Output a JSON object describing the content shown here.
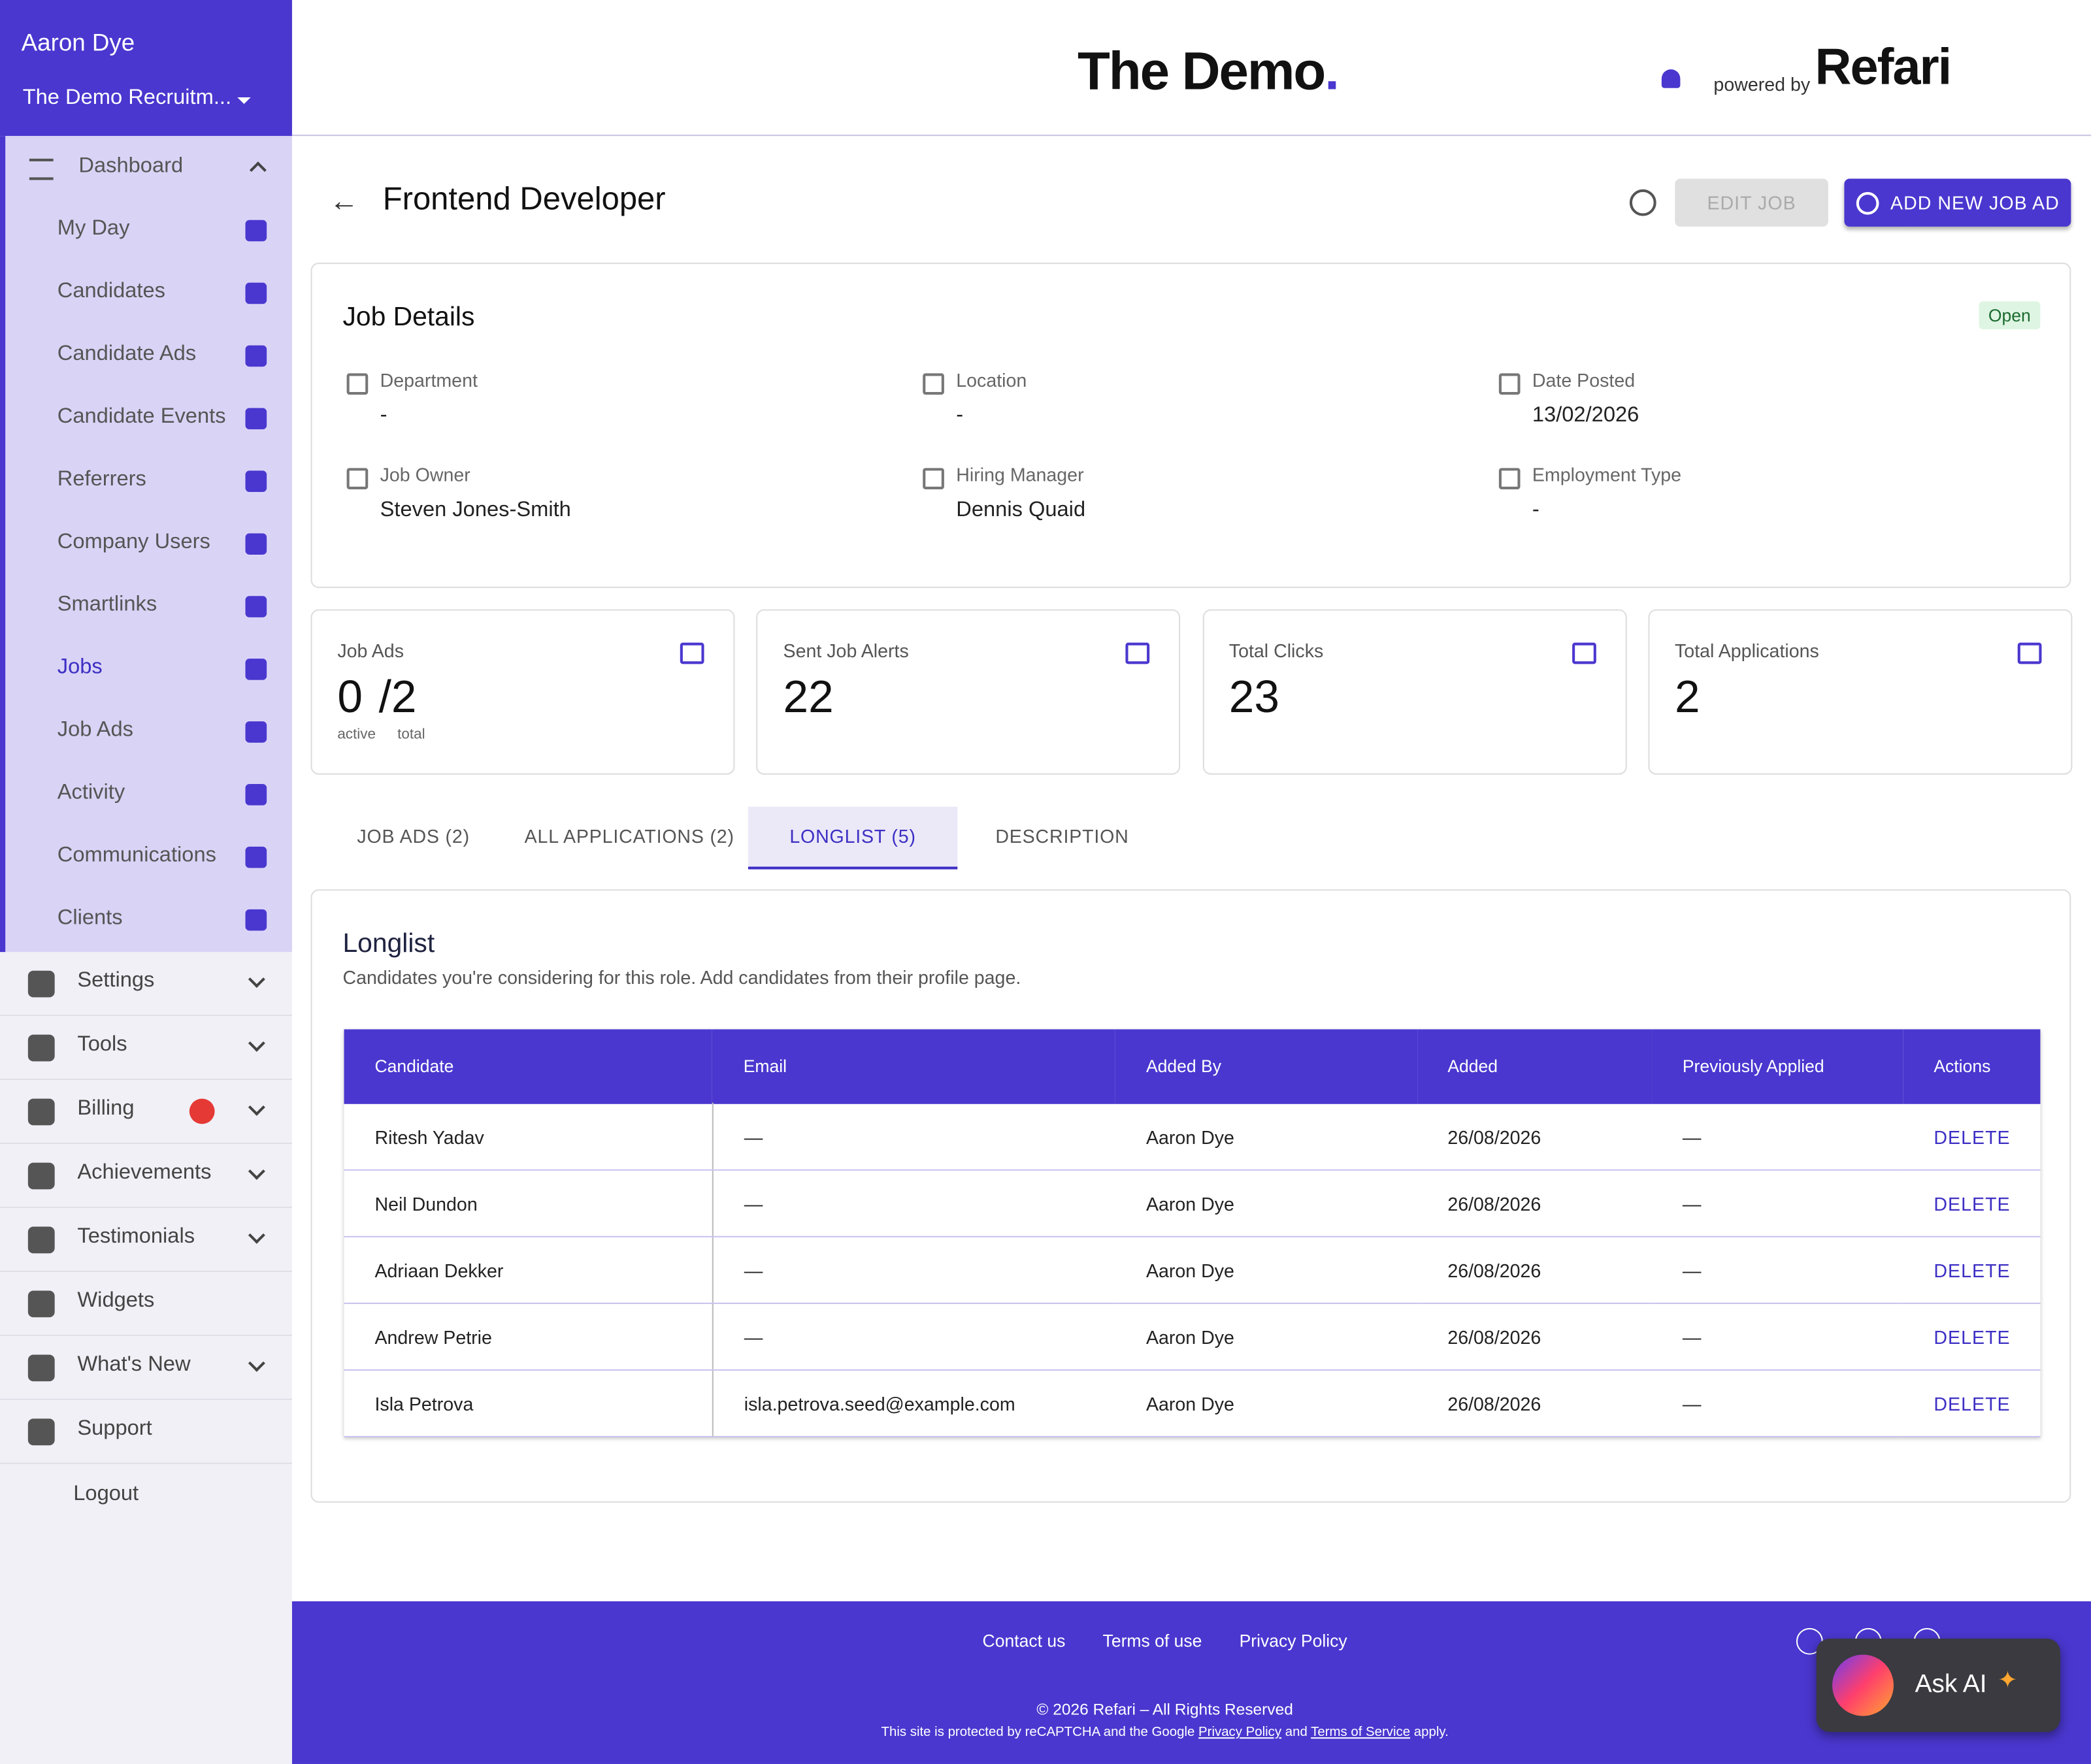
{
  "sidebar": {
    "user": "Aaron Dye",
    "company": "The Demo Recruitm...",
    "menu_title": "Dashboard",
    "menu": [
      "My Day",
      "Candidates",
      "Candidate Ads",
      "Candidate Events",
      "Referrers",
      "Company Users",
      "Smartlinks",
      "Jobs",
      "Job Ads",
      "Activity",
      "Communications",
      "Clients"
    ],
    "active_item": 7,
    "sections": [
      "Settings",
      "Tools",
      "Billing",
      "Achievements",
      "Testimonials",
      "Widgets",
      "What's New",
      "Support"
    ],
    "logout": "Logout"
  },
  "header": {
    "brand": "The Demo",
    "powered_by": "powered by",
    "logo": "Refari"
  },
  "page": {
    "title": "Frontend Developer",
    "edit_button": "EDIT JOB",
    "add_button": "ADD NEW JOB AD"
  },
  "job_details": {
    "title": "Job Details",
    "status": "Open",
    "fields": [
      {
        "label": "Department",
        "value": "-"
      },
      {
        "label": "Location",
        "value": "-"
      },
      {
        "label": "Date Posted",
        "value": "13/02/2026"
      },
      {
        "label": "Job Owner",
        "value": "Steven Jones-Smith"
      },
      {
        "label": "Hiring Manager",
        "value": "Dennis Quaid"
      },
      {
        "label": "Employment Type",
        "value": "-"
      }
    ]
  },
  "stats": [
    {
      "label": "Job Ads",
      "value": 0,
      "total": "/2",
      "sub": [
        "active",
        "total"
      ]
    },
    {
      "label": "Sent Job Alerts",
      "value": 22
    },
    {
      "label": "Total Clicks",
      "value": 23
    },
    {
      "label": "Total Applications",
      "value": 2
    }
  ],
  "tabs": [
    "JOB ADS (2)",
    "ALL APPLICATIONS (2)",
    "LONGLIST (5)",
    "DESCRIPTION"
  ],
  "active_tab": 2,
  "longlist": {
    "title": "Longlist",
    "subtitle": "Candidates you're considering for this role. Add candidates from their profile page.",
    "columns": [
      "Candidate",
      "Email",
      "Added By",
      "Added",
      "Previously Applied",
      "Actions"
    ],
    "rows": [
      [
        "Ritesh Yadav",
        "—",
        "Aaron Dye",
        "26/08/2026",
        "—",
        "DELETE"
      ],
      [
        "Neil Dundon",
        "—",
        "Aaron Dye",
        "26/08/2026",
        "—",
        "DELETE"
      ],
      [
        "Adriaan Dekker",
        "—",
        "Aaron Dye",
        "26/08/2026",
        "—",
        "DELETE"
      ],
      [
        "Andrew Petrie",
        "—",
        "Aaron Dye",
        "26/08/2026",
        "—",
        "DELETE"
      ],
      [
        "Isla Petrova",
        "isla.petrova.seed@example.com",
        "Aaron Dye",
        "26/08/2026",
        "—",
        "DELETE"
      ]
    ]
  },
  "footer": {
    "links": [
      "Contact us",
      "Terms of use",
      "Privacy Policy"
    ],
    "copyright": "© 2026 Refari – All Rights Reserved",
    "recaptcha": [
      "This site is protected by reCAPTCHA and the Google",
      "Privacy Policy",
      "and",
      "Terms of Service",
      "apply."
    ]
  },
  "ask_ai": "Ask AI"
}
